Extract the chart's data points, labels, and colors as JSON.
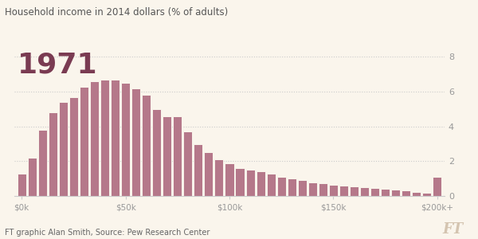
{
  "title": "Household income in 2014 dollars (% of adults)",
  "year_label": "1971",
  "footer": "FT graphic Alan Smith, Source: Pew Research Center",
  "ft_watermark": "FT",
  "bar_color": "#b5788a",
  "background_color": "#faf5ec",
  "bar_edge_color": "#faf5ec",
  "x_tick_labels": [
    "$0k",
    "$50k",
    "$100k",
    "$150k",
    "$200k+"
  ],
  "x_tick_positions": [
    0,
    10,
    20,
    30,
    40
  ],
  "y_ticks": [
    0,
    2,
    4,
    6,
    8
  ],
  "ylim": [
    0,
    8.8
  ],
  "values": [
    1.3,
    2.2,
    3.8,
    4.8,
    5.4,
    5.7,
    6.3,
    6.6,
    6.7,
    6.7,
    6.5,
    6.2,
    5.8,
    5.0,
    4.6,
    4.6,
    3.7,
    3.0,
    2.5,
    2.1,
    1.9,
    1.6,
    1.5,
    1.4,
    1.3,
    1.1,
    1.0,
    0.9,
    0.8,
    0.75,
    0.65,
    0.6,
    0.55,
    0.5,
    0.45,
    0.4,
    0.35,
    0.3,
    0.25,
    0.2,
    1.1
  ],
  "num_bars": 41,
  "year_color": "#7a3b52",
  "title_color": "#555555",
  "footer_color": "#666666",
  "watermark_color": "#d4c4b0",
  "grid_color": "#cccccc",
  "tick_color": "#999999",
  "spine_color": "#cccccc"
}
